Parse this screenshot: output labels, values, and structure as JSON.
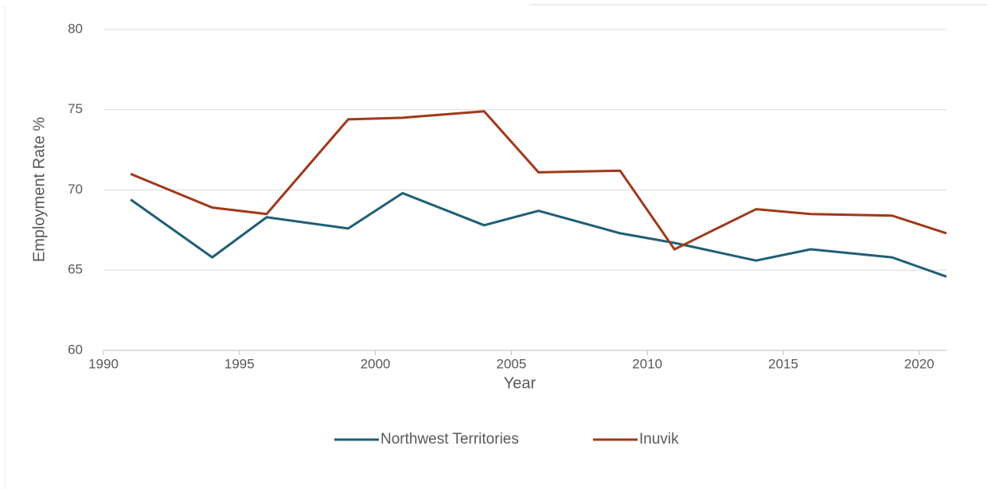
{
  "chart_data": {
    "type": "line",
    "x_label": "Year",
    "y_label": "Employment Rate  %",
    "x": [
      1991,
      1994,
      1996,
      1999,
      2001,
      2004,
      2006,
      2009,
      2011,
      2014,
      2016,
      2019,
      2021
    ],
    "series": [
      {
        "name": "Northwest Territories",
        "color": "#215f76",
        "values": [
          69.4,
          65.8,
          68.3,
          67.6,
          69.8,
          67.8,
          68.7,
          67.3,
          66.7,
          65.6,
          66.3,
          65.8,
          64.6
        ]
      },
      {
        "name": "Inuvik",
        "color": "#a0391c",
        "values": [
          71.0,
          68.9,
          68.5,
          74.4,
          74.5,
          74.9,
          71.1,
          71.2,
          66.3,
          68.8,
          68.5,
          68.4,
          67.3
        ]
      }
    ],
    "xlim": [
      1990,
      2021
    ],
    "xticks": [
      1990,
      1995,
      2000,
      2005,
      2010,
      2015,
      2020
    ],
    "ylim": [
      60,
      80
    ],
    "yticks": [
      60,
      65,
      70,
      75,
      80
    ],
    "grid": true,
    "legend": "bottom"
  }
}
